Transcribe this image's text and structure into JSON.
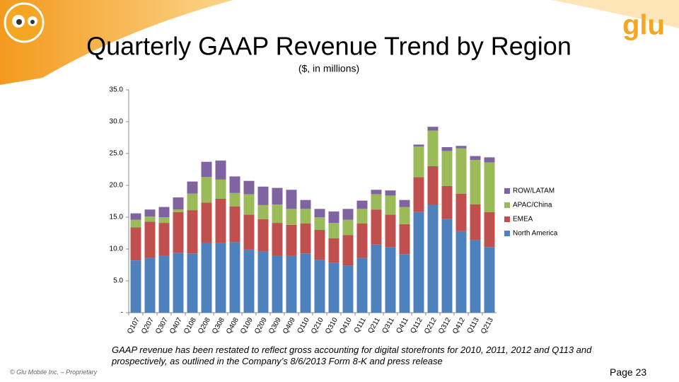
{
  "logo": "glu",
  "chart_data": {
    "type": "stacked-bar",
    "title": "Quarterly GAAP Revenue Trend by Region",
    "subtitle": "($, in millions)",
    "categories": [
      "Q107",
      "Q207",
      "Q307",
      "Q407",
      "Q108",
      "Q208",
      "Q308",
      "Q408",
      "Q109",
      "Q209",
      "Q309",
      "Q409",
      "Q110",
      "Q210",
      "Q310",
      "Q410",
      "Q111",
      "Q211",
      "Q311",
      "Q411",
      "Q112",
      "Q212",
      "Q312",
      "Q412",
      "Q113",
      "Q213"
    ],
    "series": [
      {
        "name": "North America",
        "color": "#4f81bd",
        "values": [
          8.2,
          8.6,
          8.9,
          9.4,
          9.3,
          11.0,
          10.9,
          11.1,
          9.9,
          9.6,
          9.0,
          8.9,
          9.3,
          8.3,
          7.8,
          7.4,
          8.6,
          10.7,
          10.3,
          9.2,
          15.8,
          17.0,
          14.7,
          12.8,
          11.4,
          10.3
        ]
      },
      {
        "name": "EMEA",
        "color": "#c0504d",
        "values": [
          5.2,
          5.7,
          5.2,
          6.4,
          6.8,
          6.3,
          7.0,
          5.6,
          5.5,
          5.1,
          5.1,
          4.9,
          4.7,
          4.7,
          3.9,
          4.8,
          5.4,
          5.5,
          5.1,
          4.7,
          5.5,
          6.0,
          5.2,
          5.9,
          5.6,
          5.5
        ]
      },
      {
        "name": "APAC/China",
        "color": "#9bbb59",
        "values": [
          1.2,
          0.8,
          0.9,
          0.4,
          2.6,
          4.0,
          3.0,
          2.1,
          3.2,
          2.2,
          2.9,
          2.5,
          2.3,
          2.0,
          2.4,
          2.4,
          2.3,
          2.4,
          3.0,
          2.7,
          4.8,
          5.6,
          5.5,
          7.1,
          7.0,
          7.8
        ]
      },
      {
        "name": "ROW/LATAM",
        "color": "#8064a2",
        "values": [
          1.0,
          1.1,
          1.6,
          1.9,
          1.9,
          2.4,
          3.0,
          2.6,
          2.1,
          2.9,
          2.6,
          3.0,
          1.4,
          1.3,
          1.8,
          1.7,
          1.3,
          0.7,
          0.8,
          1.1,
          0.3,
          0.6,
          0.6,
          0.4,
          0.6,
          0.8
        ]
      }
    ],
    "ylim": [
      0,
      35
    ],
    "yticks": [
      {
        "value": 0,
        "label": "-"
      },
      {
        "value": 5,
        "label": "5.0"
      },
      {
        "value": 10,
        "label": "10.0"
      },
      {
        "value": 15,
        "label": "15.0"
      },
      {
        "value": 20,
        "label": "20.0"
      },
      {
        "value": 25,
        "label": "25.0"
      },
      {
        "value": 30,
        "label": "30.0"
      },
      {
        "value": 35,
        "label": "35.0"
      }
    ],
    "grid": false,
    "legend": "right"
  },
  "footnote": "GAAP revenue has been restated to reflect gross accounting for digital storefronts for 2010, 2011, 2012  and Q113 and prospectively, as outlined in the Company’s 8/6/2013 Form 8-K and press release",
  "copyright": "© Glu Mobile Inc. – Proprietary",
  "page": "Page 23"
}
